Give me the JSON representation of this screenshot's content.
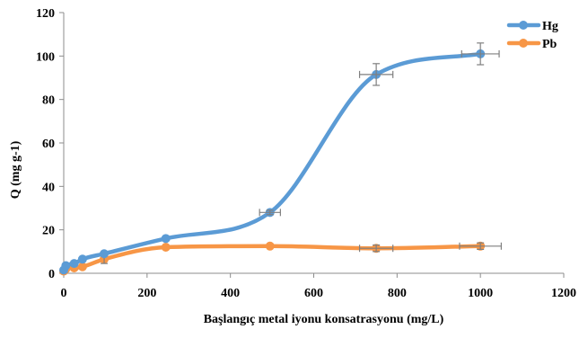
{
  "chart_data": {
    "type": "scatter",
    "xlabel": "Başlangıç metal iyonu konsatrasyonu (mg/L)",
    "ylabel": "Q (mg g-1)",
    "xlim": [
      0,
      1200
    ],
    "ylim": [
      0,
      120
    ],
    "xticks": [
      0,
      200,
      400,
      600,
      800,
      1000,
      1200
    ],
    "yticks": [
      0,
      20,
      40,
      60,
      80,
      100,
      120
    ],
    "grid": false,
    "legend_position": "top-right",
    "smooth_lines": true,
    "series": [
      {
        "name": "Hg",
        "color": "#5B9BD5",
        "x": [
          0,
          5,
          25,
          45,
          97,
          245,
          495,
          750,
          1000
        ],
        "y": [
          1.5,
          3.5,
          4.5,
          6.5,
          9,
          16,
          28,
          91.5,
          101
        ],
        "x_error": [
          0,
          0,
          0,
          0,
          0,
          0,
          25,
          40,
          45
        ],
        "y_error": [
          0,
          0,
          0,
          0,
          0,
          0,
          1,
          5,
          5
        ]
      },
      {
        "name": "Pb",
        "color": "#F79646",
        "x": [
          0,
          5,
          25,
          45,
          97,
          245,
          495,
          750,
          1000
        ],
        "y": [
          1,
          2,
          2.5,
          3,
          6.5,
          12,
          12.5,
          11.5,
          12.5
        ],
        "x_error": [
          0,
          0,
          0,
          0,
          0,
          0,
          0,
          40,
          50
        ],
        "y_error": [
          0,
          0,
          0,
          0,
          2,
          0,
          0,
          1.5,
          1.5
        ]
      }
    ]
  }
}
